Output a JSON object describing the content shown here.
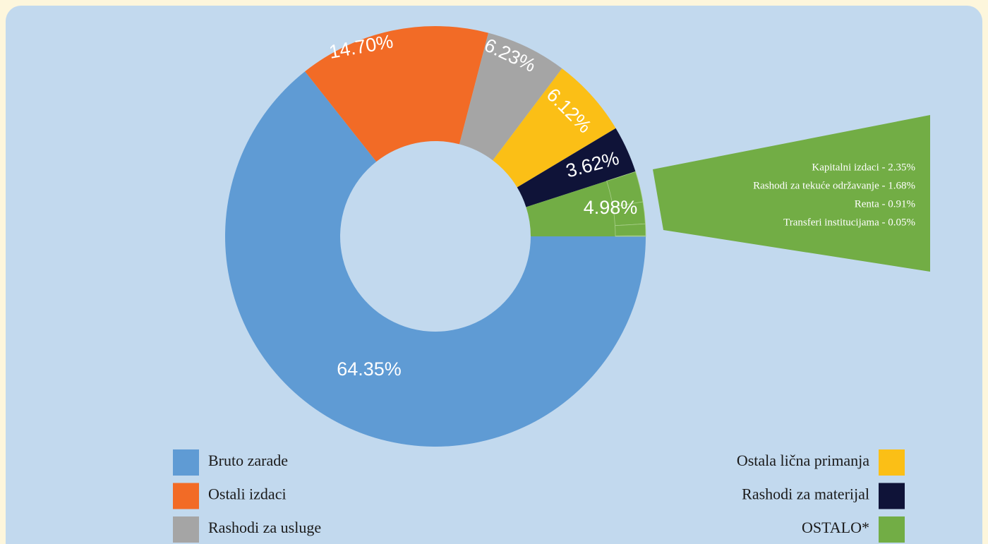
{
  "chart_data": {
    "type": "donut",
    "categories": [
      "Bruto zarade",
      "Ostali izdaci",
      "Rashodi za usluge",
      "Ostala lična primanja",
      "Rashodi za materijal",
      "OSTALO*"
    ],
    "values": [
      64.35,
      14.7,
      6.23,
      6.12,
      3.62,
      4.98
    ],
    "value_labels": [
      "64.35%",
      "14.70%",
      "6.23%",
      "6.12%",
      "3.62%",
      "4.98%"
    ],
    "colors": [
      "#5f9bd4",
      "#f26b26",
      "#a5a5a5",
      "#fbbf16",
      "#0f1338",
      "#72ad45"
    ],
    "breakdown": {
      "labels": [
        "Kapitalni izdaci - 2.35%",
        "Rashodi za tekuće održavanje - 1.68%",
        "Renta - 0.91%",
        "Transferi institucijama - 0.05%"
      ],
      "values": [
        2.35,
        1.68,
        0.91,
        0.05
      ]
    }
  }
}
